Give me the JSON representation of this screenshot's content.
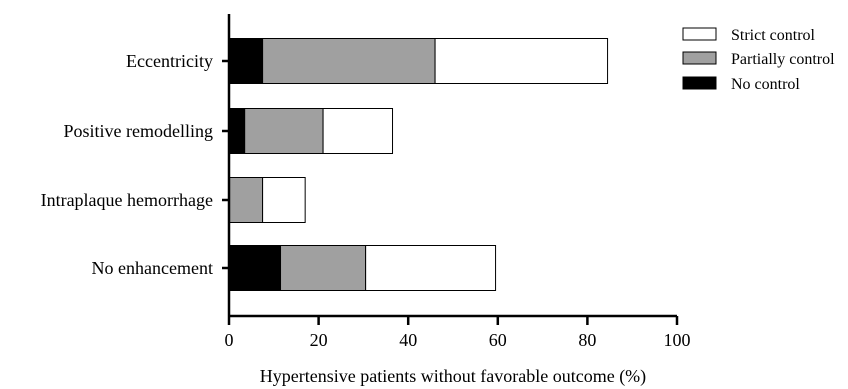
{
  "chart_data": {
    "type": "bar",
    "orientation": "horizontal",
    "stacked": true,
    "categories": [
      "Eccentricity",
      "Positive remodelling",
      "Intraplaque hemorrhage",
      "No enhancement"
    ],
    "series": [
      {
        "name": "No control",
        "color": "#000000",
        "values": [
          7.5,
          3.5,
          0,
          11.5
        ]
      },
      {
        "name": "Partially control",
        "color": "#a0a0a0",
        "values": [
          38.5,
          17.5,
          7.5,
          19
        ]
      },
      {
        "name": "Strict control",
        "color": "#ffffff",
        "values": [
          38.5,
          15.5,
          9.5,
          29
        ]
      }
    ],
    "legend_order": [
      "Strict control",
      "Partially control",
      "No control"
    ],
    "xlabel": "Hypertensive patients without favorable outcome (%)",
    "ylabel": "",
    "xlim": [
      0,
      100
    ],
    "xticks": [
      "0",
      "20",
      "40",
      "60",
      "80",
      "100"
    ],
    "grid": false,
    "legend_position": "top-right"
  }
}
